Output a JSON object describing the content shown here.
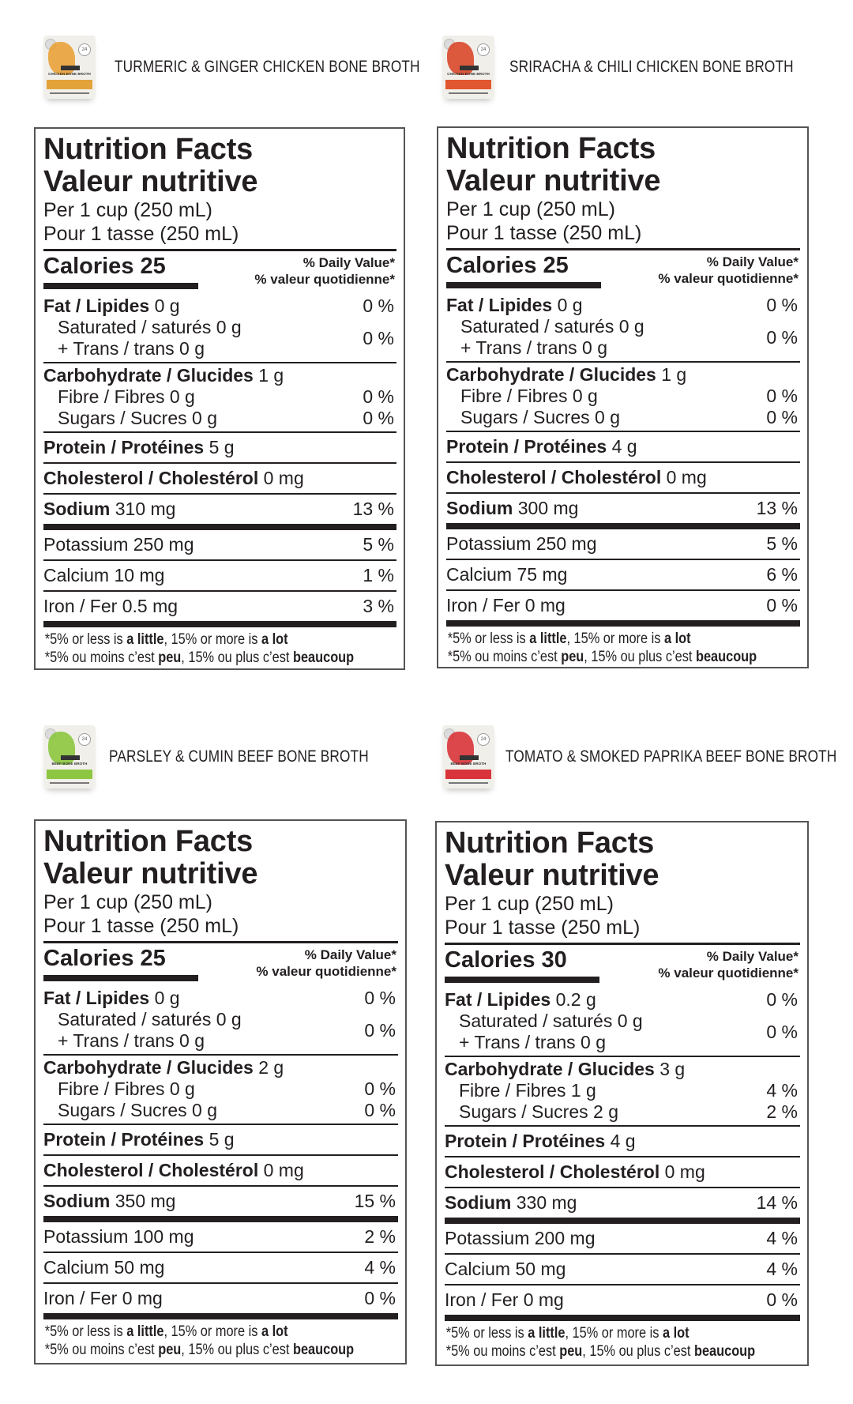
{
  "products": [
    {
      "id": "turmeric",
      "title": "TURMERIC & GINGER CHICKEN BONE BROTH",
      "pouch": {
        "art_color": "#e9a23a",
        "band_color": "#e3a33b",
        "label": "CHICKEN BONE BROTH",
        "badge": "24"
      },
      "label": {
        "title_en": "Nutrition Facts",
        "title_fr": "Valeur nutritive",
        "serving_en": "Per 1 cup (250 mL)",
        "serving_fr": "Pour 1 tasse (250 mL)",
        "calories_label": "Calories",
        "calories": "25",
        "dv_en": "% Daily Value*",
        "dv_fr": "% valeur quotidienne*",
        "fat_label": "Fat / Lipides",
        "fat": "0 g",
        "fat_pct": "0 %",
        "sat_label": "Saturated / saturés",
        "sat": "0 g",
        "trans_label": "+ Trans / trans",
        "trans": "0 g",
        "sat_trans_pct": "0 %",
        "carb_label": "Carbohydrate / Glucides",
        "carb": "1 g",
        "fibre_label": "Fibre / Fibres",
        "fibre": "0 g",
        "fibre_pct": "0 %",
        "sugars_label": "Sugars / Sucres",
        "sugars": "0 g",
        "sugars_pct": "0 %",
        "protein_label": "Protein / Protéines",
        "protein": "5 g",
        "chol_label": "Cholesterol / Cholestérol",
        "chol": "0 mg",
        "sodium_label": "Sodium",
        "sodium": "310 mg",
        "sodium_pct": "13 %",
        "potassium_label": "Potassium",
        "potassium": "250 mg",
        "potassium_pct": "5 %",
        "calcium_label": "Calcium",
        "calcium": "10 mg",
        "calcium_pct": "1 %",
        "iron_label": "Iron / Fer",
        "iron": "0.5 mg",
        "iron_pct": "3 %",
        "note_en": {
          "a": "*5% or less is ",
          "b": "a little",
          "c": ", 15% or more is ",
          "d": "a lot"
        },
        "note_fr": {
          "a": "*5% ou moins c’est ",
          "b": "peu",
          "c": ", 15% ou plus c’est ",
          "d": "beaucoup"
        }
      }
    },
    {
      "id": "sriracha",
      "title": "SRIRACHA & CHILI CHICKEN BONE BROTH",
      "pouch": {
        "art_color": "#d9482b",
        "band_color": "#e1572f",
        "label": "CHICKEN BONE BROTH",
        "badge": "24"
      },
      "label": {
        "title_en": "Nutrition Facts",
        "title_fr": "Valeur nutritive",
        "serving_en": "Per 1 cup (250 mL)",
        "serving_fr": "Pour 1 tasse (250 mL)",
        "calories_label": "Calories",
        "calories": "25",
        "dv_en": "% Daily Value*",
        "dv_fr": "% valeur quotidienne*",
        "fat_label": "Fat / Lipides",
        "fat": "0 g",
        "fat_pct": "0 %",
        "sat_label": "Saturated / saturés",
        "sat": "0 g",
        "trans_label": "+ Trans / trans",
        "trans": "0 g",
        "sat_trans_pct": "0 %",
        "carb_label": "Carbohydrate / Glucides",
        "carb": "1 g",
        "fibre_label": "Fibre / Fibres",
        "fibre": "0 g",
        "fibre_pct": "0 %",
        "sugars_label": "Sugars / Sucres",
        "sugars": "0 g",
        "sugars_pct": "0 %",
        "protein_label": "Protein / Protéines",
        "protein": "4 g",
        "chol_label": "Cholesterol / Cholestérol",
        "chol": "0 mg",
        "sodium_label": "Sodium",
        "sodium": "300 mg",
        "sodium_pct": "13 %",
        "potassium_label": "Potassium",
        "potassium": "250 mg",
        "potassium_pct": "5 %",
        "calcium_label": "Calcium",
        "calcium": "75 mg",
        "calcium_pct": "6 %",
        "iron_label": "Iron / Fer",
        "iron": "0 mg",
        "iron_pct": "0 %",
        "note_en": {
          "a": "*5% or less is ",
          "b": "a little",
          "c": ", 15% or more is ",
          "d": "a lot"
        },
        "note_fr": {
          "a": "*5% ou moins c’est ",
          "b": "peu",
          "c": ", 15% ou plus c’est ",
          "d": "beaucoup"
        }
      }
    },
    {
      "id": "parsley",
      "title": "PARSLEY & CUMIN BEEF BONE BROTH",
      "pouch": {
        "art_color": "#8cc63f",
        "band_color": "#8dc641",
        "label": "BEEF BONE BROTH",
        "badge": "24"
      },
      "label": {
        "title_en": "Nutrition Facts",
        "title_fr": "Valeur nutritive",
        "serving_en": "Per 1 cup (250 mL)",
        "serving_fr": "Pour 1 tasse (250 mL)",
        "calories_label": "Calories",
        "calories": "25",
        "dv_en": "% Daily Value*",
        "dv_fr": "% valeur quotidienne*",
        "fat_label": "Fat / Lipides",
        "fat": "0 g",
        "fat_pct": "0 %",
        "sat_label": "Saturated / saturés",
        "sat": "0 g",
        "trans_label": "+ Trans / trans",
        "trans": "0 g",
        "sat_trans_pct": "0 %",
        "carb_label": "Carbohydrate / Glucides",
        "carb": "2 g",
        "fibre_label": "Fibre / Fibres",
        "fibre": "0 g",
        "fibre_pct": "0 %",
        "sugars_label": "Sugars / Sucres",
        "sugars": "0 g",
        "sugars_pct": "0 %",
        "protein_label": "Protein / Protéines",
        "protein": "5 g",
        "chol_label": "Cholesterol / Cholestérol",
        "chol": "0 mg",
        "sodium_label": "Sodium",
        "sodium": "350 mg",
        "sodium_pct": "15 %",
        "potassium_label": "Potassium",
        "potassium": "100 mg",
        "potassium_pct": "2 %",
        "calcium_label": "Calcium",
        "calcium": "50 mg",
        "calcium_pct": "4 %",
        "iron_label": "Iron / Fer",
        "iron": "0 mg",
        "iron_pct": "0 %",
        "note_en": {
          "a": "*5% or less is ",
          "b": "a little",
          "c": ", 15% or more is ",
          "d": "a lot"
        },
        "note_fr": {
          "a": "*5% ou moins c’est ",
          "b": "peu",
          "c": ", 15% ou plus c’est ",
          "d": "beaucoup"
        }
      }
    },
    {
      "id": "tomato",
      "title": "TOMATO & SMOKED PAPRIKA BEEF BONE BROTH",
      "pouch": {
        "art_color": "#d8343a",
        "band_color": "#d9343b",
        "label": "BEEF BONE BROTH",
        "badge": "24"
      },
      "label": {
        "title_en": "Nutrition Facts",
        "title_fr": "Valeur nutritive",
        "serving_en": "Per 1 cup (250 mL)",
        "serving_fr": "Pour 1 tasse (250 mL)",
        "calories_label": "Calories",
        "calories": "30",
        "dv_en": "% Daily Value*",
        "dv_fr": "% valeur quotidienne*",
        "fat_label": "Fat / Lipides",
        "fat": "0.2 g",
        "fat_pct": "0 %",
        "sat_label": "Saturated / saturés",
        "sat": "0 g",
        "trans_label": "+ Trans / trans",
        "trans": "0 g",
        "sat_trans_pct": "0 %",
        "carb_label": "Carbohydrate / Glucides",
        "carb": "3 g",
        "fibre_label": "Fibre / Fibres",
        "fibre": "1 g",
        "fibre_pct": "4 %",
        "sugars_label": "Sugars / Sucres",
        "sugars": "2 g",
        "sugars_pct": "2 %",
        "protein_label": "Protein / Protéines",
        "protein": "4 g",
        "chol_label": "Cholesterol / Cholestérol",
        "chol": "0 mg",
        "sodium_label": "Sodium",
        "sodium": "330 mg",
        "sodium_pct": "14 %",
        "potassium_label": "Potassium",
        "potassium": "200 mg",
        "potassium_pct": "4 %",
        "calcium_label": "Calcium",
        "calcium": "50 mg",
        "calcium_pct": "4 %",
        "iron_label": "Iron / Fer",
        "iron": "0 mg",
        "iron_pct": "0 %",
        "note_en": {
          "a": "*5% or less is ",
          "b": "a little",
          "c": ", 15% or more is ",
          "d": "a lot"
        },
        "note_fr": {
          "a": "*5% ou moins c’est ",
          "b": "peu",
          "c": ", 15% ou plus c’est ",
          "d": "beaucoup"
        }
      }
    }
  ]
}
